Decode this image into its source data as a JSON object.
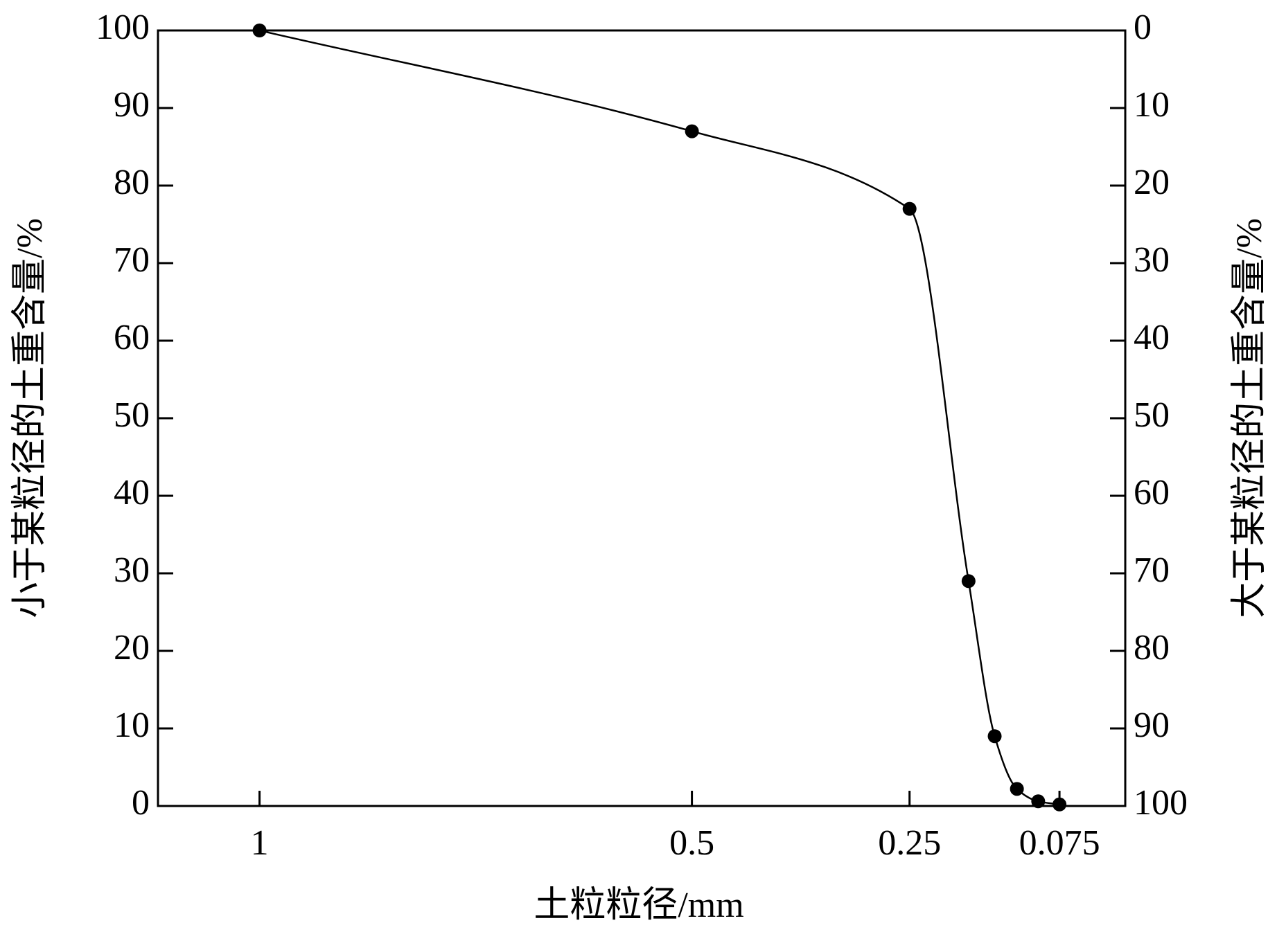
{
  "chart_data": {
    "type": "line",
    "x_label": "土粒粒径/mm",
    "y_label": "小于某粒径的土重含量/%",
    "y2_label": "大于某粒径的土重含量/%",
    "categories": [
      "1",
      "0.5",
      "0.25",
      null,
      null,
      null,
      null,
      "0.075"
    ],
    "series": [
      {
        "color": "#000000",
        "values": [
          100,
          87,
          77,
          29,
          9,
          2.2,
          0.6,
          0.2
        ]
      }
    ],
    "ylim": [
      0,
      100
    ],
    "yticks": [
      0,
      10,
      20,
      30,
      40,
      50,
      60,
      70,
      80,
      90,
      100
    ],
    "y2lim": [
      100,
      0
    ],
    "y2ticks": [
      0,
      10,
      20,
      30,
      40,
      50,
      60,
      70,
      80,
      90,
      100
    ],
    "markers": true
  }
}
